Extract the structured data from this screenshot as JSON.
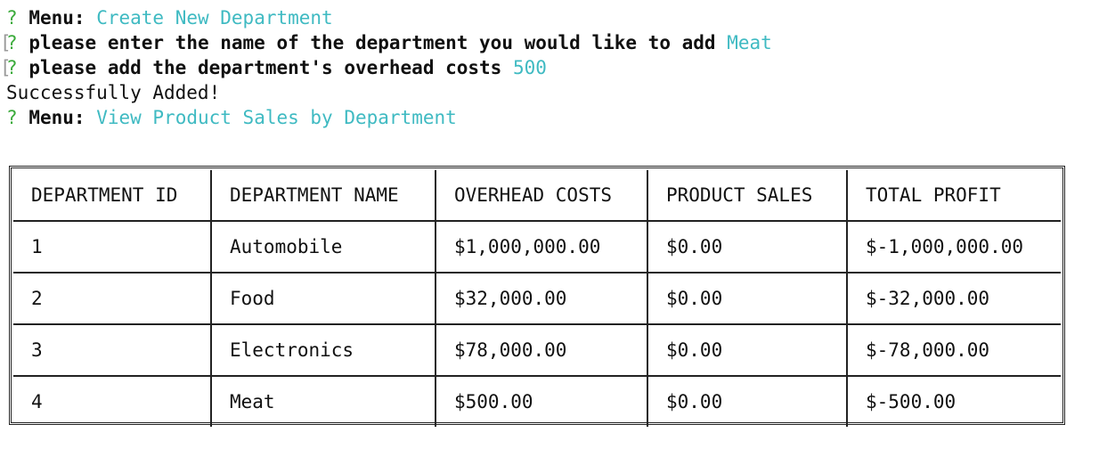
{
  "prompt_symbol": "?",
  "bracket_symbol": "[",
  "lines": [
    {
      "label": "Menu:",
      "answer": "Create New Department",
      "bracket": false
    },
    {
      "label": "please enter the name of the department you would like to add",
      "answer": "Meat",
      "bracket": true
    },
    {
      "label": "please add the department's overhead costs",
      "answer": "500",
      "bracket": true
    },
    {
      "message": "Successfully Added!"
    },
    {
      "label": "Menu:",
      "answer": "View Product Sales by Department",
      "bracket": false
    }
  ],
  "table": {
    "headers": [
      "DEPARTMENT ID",
      "DEPARTMENT NAME",
      "OVERHEAD COSTS",
      "PRODUCT SALES",
      "TOTAL PROFIT"
    ],
    "rows": [
      [
        "1",
        "Automobile",
        "$1,000,000.00",
        "$0.00",
        "$-1,000,000.00"
      ],
      [
        "2",
        "Food",
        "$32,000.00",
        "$0.00",
        "$-32,000.00"
      ],
      [
        "3",
        "Electronics",
        "$78,000.00",
        "$0.00",
        "$-78,000.00"
      ],
      [
        "4",
        "Meat",
        "$500.00",
        "$0.00",
        "$-500.00"
      ]
    ]
  },
  "colors": {
    "prompt": "#3cab3c",
    "answer": "#3fbac2",
    "text": "#111111",
    "bracket": "#9a9a9a"
  }
}
